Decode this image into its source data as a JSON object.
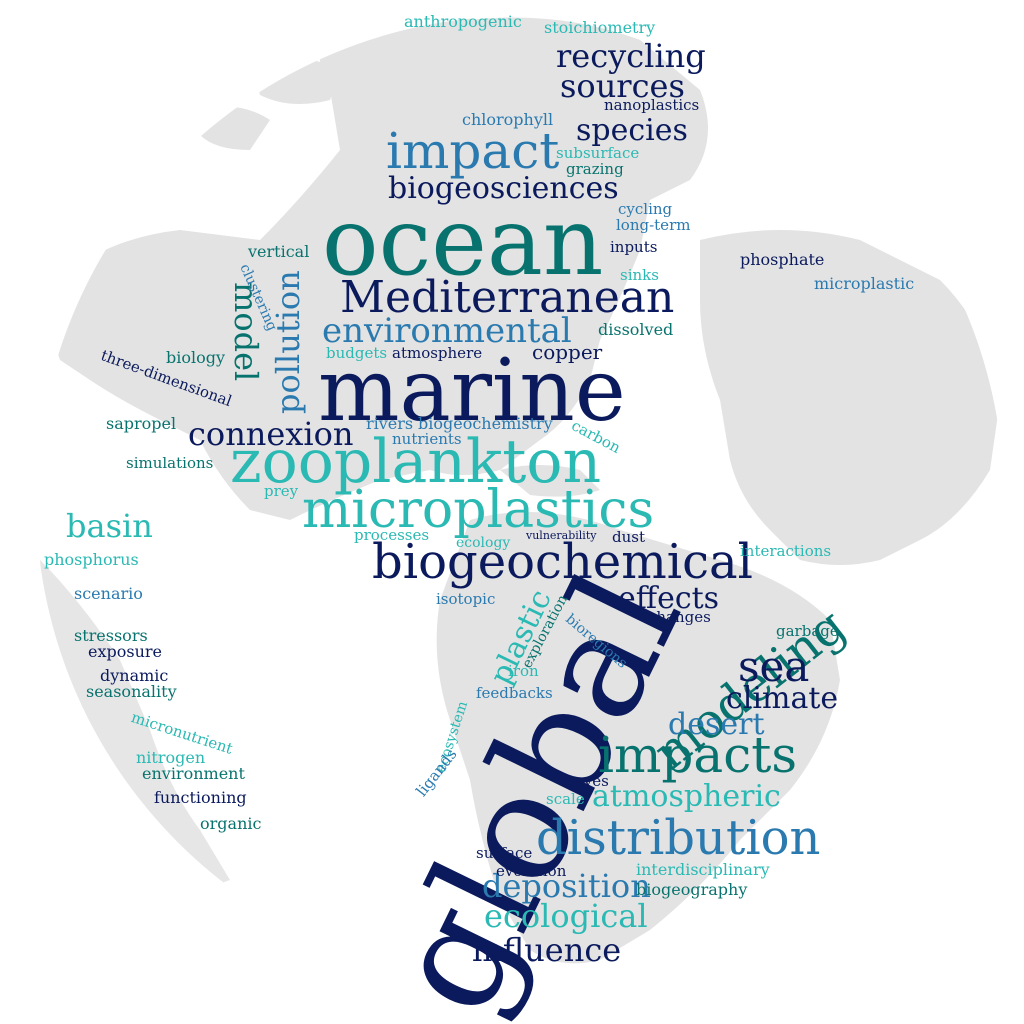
{
  "palette": {
    "navy": "#0b1a5c",
    "teal": "#08736e",
    "blue": "#2a7ab0",
    "cyan": "#2ab9b3",
    "land": "#e3e3e3",
    "background": "#ffffff"
  },
  "words": {
    "ocean": "ocean",
    "marine": "marine",
    "global": "global",
    "zooplankton": "zooplankton",
    "microplastics": "microplastics",
    "biogeochemical": "biogeochemical",
    "mediterranean": "Mediterranean",
    "impact": "impact",
    "impacts": "impacts",
    "distribution": "distribution",
    "modeling": "modeling",
    "environmental": "environmental",
    "biogeosciences": "biogeosciences",
    "recycling": "recycling",
    "sources": "sources",
    "species": "species",
    "connexion": "connexion",
    "pollution": "pollution",
    "model": "model",
    "basin": "basin",
    "sea": "sea",
    "climate": "climate",
    "desert": "desert",
    "effects": "effects",
    "atmospheric": "atmospheric",
    "deposition": "deposition",
    "ecological": "ecological",
    "influence": "influence",
    "plastic": "plastic",
    "copper": "copper",
    "anthropogenic": "anthropogenic",
    "stoichiometry": "stoichiometry",
    "nanoplastics": "nanoplastics",
    "chlorophyll": "chlorophyll",
    "subsurface": "subsurface",
    "grazing": "grazing",
    "cycling": "cycling",
    "long_term": "long-term",
    "inputs": "inputs",
    "sinks": "sinks",
    "phosphate": "phosphate",
    "microplastic": "microplastic",
    "vertical": "vertical",
    "clustering": "clustering",
    "dissolved": "dissolved",
    "budgets": "budgets",
    "atmosphere": "atmosphere",
    "biology": "biology",
    "three_dimensional": "three-dimensional",
    "sapropel": "sapropel",
    "rivers": "rivers",
    "biogeochemistry": "biogeochemistry",
    "nutrients": "nutrients",
    "carbon": "carbon",
    "simulations": "simulations",
    "prey": "prey",
    "processes": "processes",
    "ecology": "ecology",
    "vulnerability": "vulnerability",
    "dust": "dust",
    "interactions": "interactions",
    "phosphorus": "phosphorus",
    "scenario": "scenario",
    "isotopic": "isotopic",
    "exploration": "exploration",
    "bioregions": "bioregions",
    "changes": "changes",
    "garbage": "garbage",
    "stressors": "stressors",
    "exposure": "exposure",
    "dynamic": "dynamic",
    "seasonality": "seasonality",
    "iron": "iron",
    "feedbacks": "feedbacks",
    "ecosystem": "ecosystem",
    "micronutrient": "micronutrient",
    "nitrogen": "nitrogen",
    "environment": "environment",
    "ligands": "ligands",
    "waves": "waves",
    "scale": "scale",
    "functioning": "functioning",
    "organic": "organic",
    "surface": "surface",
    "evolution": "evolution",
    "interdisciplinary": "interdisciplinary",
    "biogeography": "biogeography"
  }
}
